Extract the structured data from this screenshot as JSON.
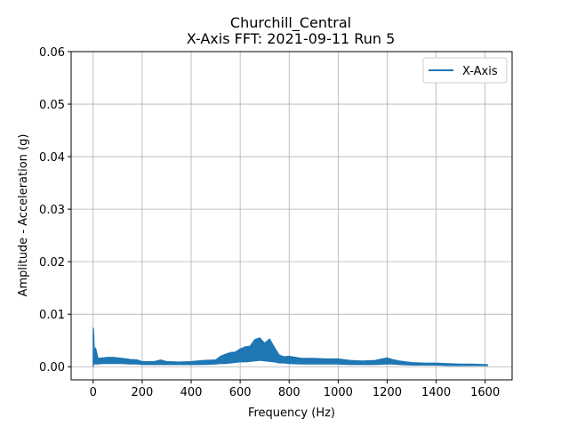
{
  "chart_data": {
    "type": "line",
    "title": "Churchill_Central",
    "subtitle": "X-Axis FFT: 2021-09-11 Run 5",
    "xlabel": "Frequency (Hz)",
    "ylabel": "Amplitude - Acceleration (g)",
    "xlim": [
      -90,
      1710
    ],
    "ylim": [
      -0.0025,
      0.06
    ],
    "xticks": [
      0,
      200,
      400,
      600,
      800,
      1000,
      1200,
      1400,
      1600
    ],
    "xtick_labels": [
      "0",
      "200",
      "400",
      "600",
      "800",
      "1000",
      "1200",
      "1400",
      "1600"
    ],
    "yticks": [
      0.0,
      0.01,
      0.02,
      0.03,
      0.04,
      0.05,
      0.06
    ],
    "ytick_labels": [
      "0.00",
      "0.01",
      "0.02",
      "0.03",
      "0.04",
      "0.05",
      "0.06"
    ],
    "grid": true,
    "legend_position": "top-right",
    "series": [
      {
        "name": "X-Axis",
        "color": "#1f77b4",
        "x": [
          0,
          2,
          5,
          10,
          20,
          40,
          60,
          80,
          100,
          120,
          150,
          180,
          200,
          250,
          275,
          300,
          350,
          400,
          450,
          500,
          520,
          540,
          560,
          580,
          600,
          620,
          640,
          660,
          680,
          700,
          720,
          740,
          760,
          780,
          800,
          850,
          900,
          950,
          1000,
          1050,
          1100,
          1150,
          1200,
          1220,
          1250,
          1300,
          1350,
          1400,
          1450,
          1500,
          1550,
          1610
        ],
        "lower": [
          0.0,
          0.0005,
          0.0005,
          0.0005,
          0.0005,
          0.0006,
          0.0006,
          0.0006,
          0.0006,
          0.0006,
          0.0005,
          0.0005,
          0.0004,
          0.0004,
          0.0004,
          0.0004,
          0.0004,
          0.0004,
          0.0004,
          0.0005,
          0.0006,
          0.0006,
          0.0007,
          0.0008,
          0.0009,
          0.0009,
          0.001,
          0.0011,
          0.0012,
          0.0011,
          0.001,
          0.0009,
          0.0007,
          0.0007,
          0.0006,
          0.0005,
          0.0005,
          0.0005,
          0.0005,
          0.0004,
          0.0004,
          0.0004,
          0.0005,
          0.0005,
          0.0004,
          0.0003,
          0.0003,
          0.0003,
          0.0002,
          0.0002,
          0.0002,
          0.0002
        ],
        "upper": [
          0.0074,
          0.007,
          0.003,
          0.0036,
          0.0016,
          0.0017,
          0.0018,
          0.0018,
          0.0017,
          0.0016,
          0.0014,
          0.0013,
          0.001,
          0.001,
          0.0013,
          0.001,
          0.0009,
          0.001,
          0.0012,
          0.0013,
          0.002,
          0.0024,
          0.0027,
          0.0028,
          0.0034,
          0.0038,
          0.0039,
          0.0052,
          0.0055,
          0.0045,
          0.0053,
          0.0037,
          0.0022,
          0.0019,
          0.002,
          0.0016,
          0.0016,
          0.0015,
          0.0015,
          0.0012,
          0.0011,
          0.0012,
          0.0017,
          0.0014,
          0.0011,
          0.0008,
          0.0007,
          0.0007,
          0.0006,
          0.0005,
          0.0005,
          0.0004
        ]
      }
    ]
  }
}
